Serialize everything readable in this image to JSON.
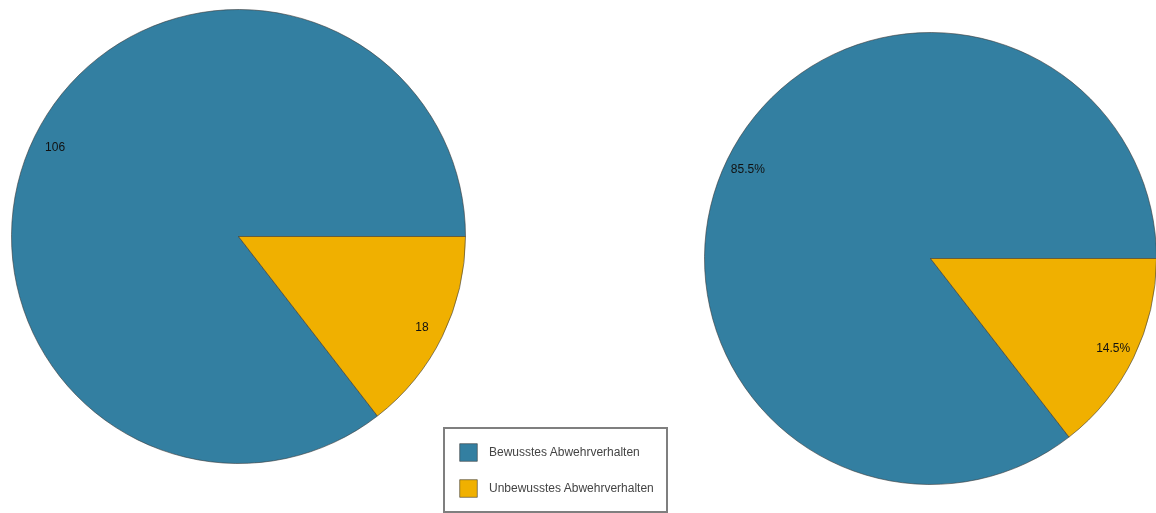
{
  "chart_data": [
    {
      "type": "pie",
      "categories": [
        "Bewusstes Abwehrverhalten",
        "Unbewusstes Abwehrverhalten"
      ],
      "values": [
        106,
        18
      ],
      "colors": [
        "#337fa1",
        "#f0b000"
      ],
      "data_labels": true,
      "legend": "bottom right"
    },
    {
      "type": "pie",
      "values": [
        85.5,
        14.5
      ],
      "colors": [
        "#337fa1",
        "#f0b000"
      ],
      "value_labels": [
        "85.5%",
        "14.5%"
      ],
      "legend": false
    }
  ]
}
